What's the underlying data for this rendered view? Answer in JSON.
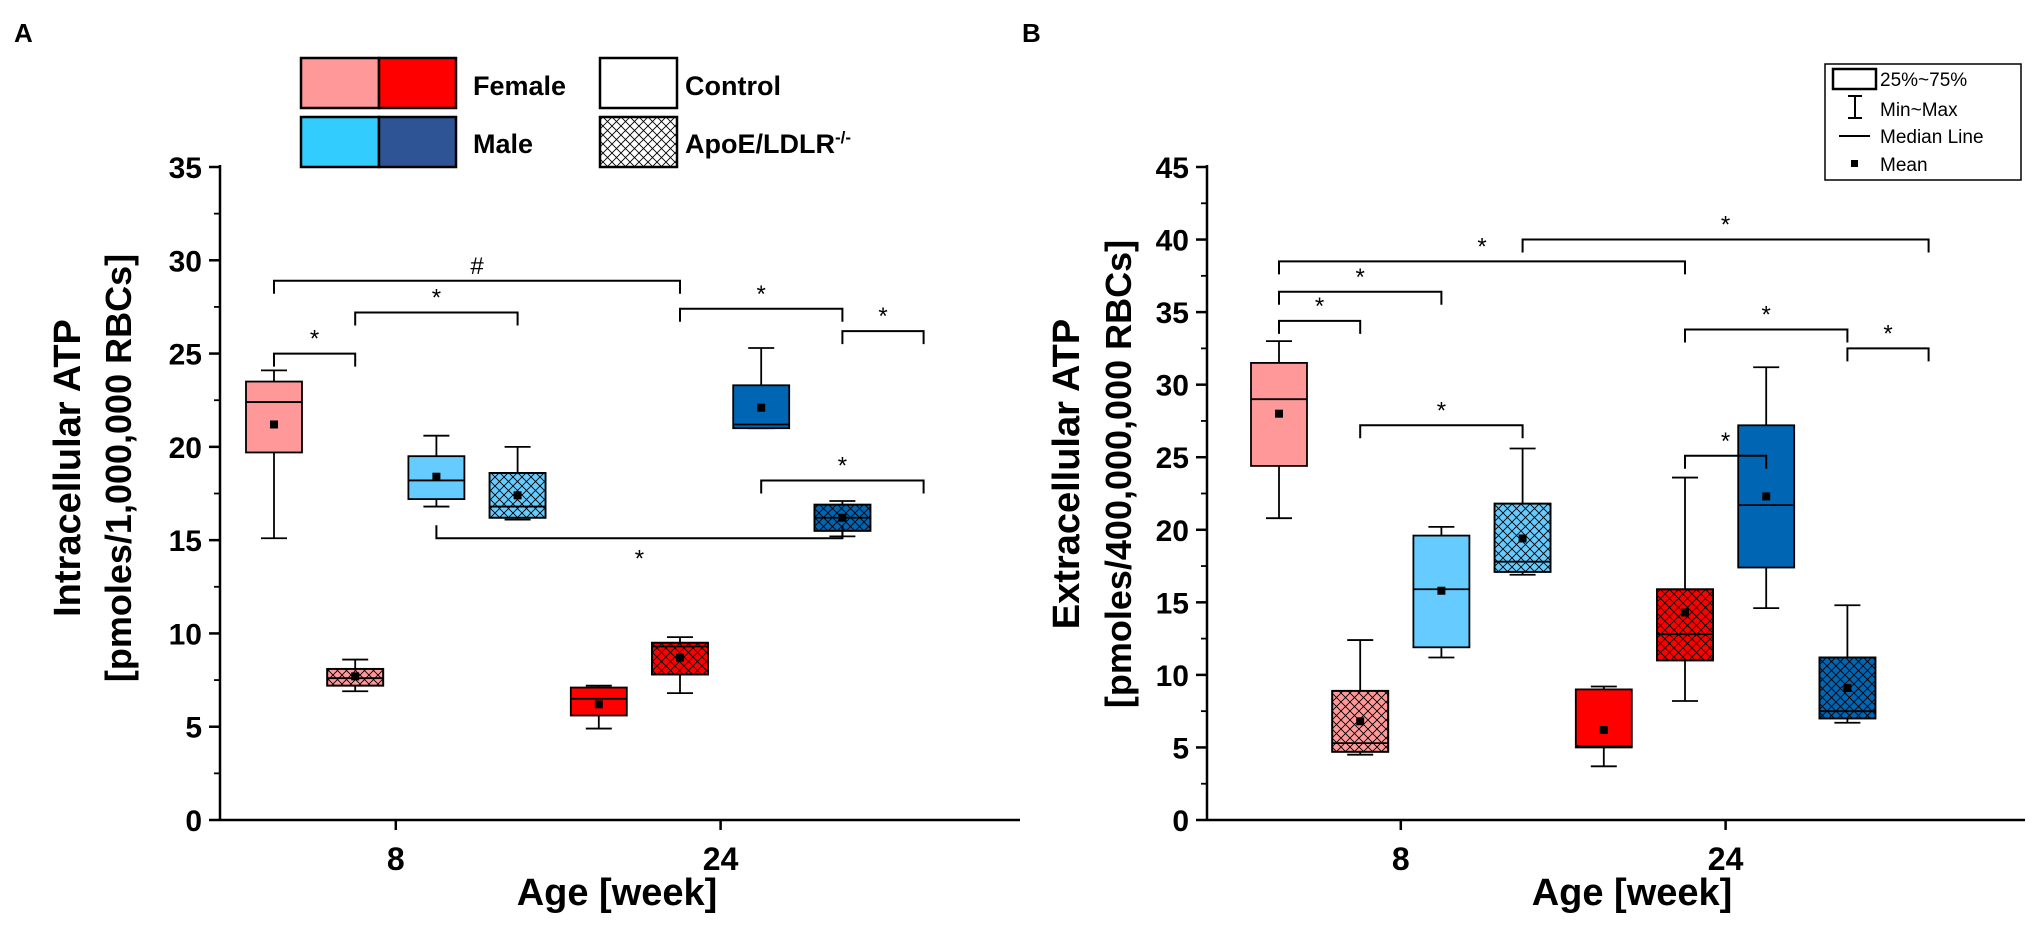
{
  "colors": {
    "female_control": "#ff9999",
    "female_apoe": "#ff0000",
    "male_control": "#66ccff",
    "male_apoe": "#0066b3",
    "legend_male_apoe": "#2e5496",
    "legend_male_control": "#33ccff"
  },
  "legend_groups": {
    "female": "Female",
    "male": "Male",
    "control": "Control",
    "apoe_main": "ApoE/LDLR",
    "apoe_sup": "-/-"
  },
  "box_legend": {
    "box": "25%~75%",
    "whisker": "Min~Max",
    "median": "Median Line",
    "mean": "Mean"
  },
  "chart_data": [
    {
      "panel": "A",
      "type": "box",
      "ylabel_line1": "Intracellular ATP",
      "ylabel_line2": "[pmoles/1,000,000 RBCs]",
      "xlabel": "Age [week]",
      "categories": [
        "8",
        "24"
      ],
      "ylim": [
        0,
        35
      ],
      "yticks": [
        0,
        5,
        10,
        15,
        20,
        25,
        30,
        35
      ],
      "ytick_labels": [
        "0",
        "5",
        "10",
        "15",
        "20",
        "25",
        "30",
        "35"
      ],
      "boxes": [
        {
          "group": "8",
          "series": "Female Control",
          "color": "female_control",
          "hatch": false,
          "slot": 1,
          "min": 15.1,
          "q1": 19.7,
          "median": 22.4,
          "q3": 23.5,
          "max": 24.1,
          "mean": 21.2
        },
        {
          "group": "8",
          "series": "Female ApoE/LDLR-/-",
          "color": "female_control",
          "hatch": true,
          "slot": 2,
          "min": 6.9,
          "q1": 7.2,
          "median": 7.6,
          "q3": 8.1,
          "max": 8.6,
          "mean": 7.7
        },
        {
          "group": "8",
          "series": "Male Control",
          "color": "male_control",
          "hatch": false,
          "slot": 3,
          "min": 16.8,
          "q1": 17.2,
          "median": 18.2,
          "q3": 19.5,
          "max": 20.6,
          "mean": 18.4
        },
        {
          "group": "8",
          "series": "Male ApoE/LDLR-/-",
          "color": "male_control",
          "hatch": true,
          "slot": 4,
          "min": 16.1,
          "q1": 16.2,
          "median": 16.8,
          "q3": 18.6,
          "max": 20.0,
          "mean": 17.4
        },
        {
          "group": "24",
          "series": "Female Control",
          "color": "female_apoe",
          "hatch": false,
          "slot": 5,
          "min": 4.9,
          "q1": 5.6,
          "median": 6.5,
          "q3": 7.1,
          "max": 7.2,
          "mean": 6.2
        },
        {
          "group": "24",
          "series": "Female ApoE/LDLR-/-",
          "color": "female_apoe",
          "hatch": true,
          "slot": 6,
          "min": 6.8,
          "q1": 7.8,
          "median": 9.3,
          "q3": 9.5,
          "max": 9.8,
          "mean": 8.7
        },
        {
          "group": "24",
          "series": "Male Control",
          "color": "male_apoe",
          "hatch": false,
          "slot": 7,
          "min": 21.0,
          "q1": 21.0,
          "median": 21.2,
          "q3": 23.3,
          "max": 25.3,
          "mean": 22.1
        },
        {
          "group": "24",
          "series": "Male ApoE/LDLR-/-",
          "color": "male_apoe",
          "hatch": true,
          "slot": 8,
          "min": 15.2,
          "q1": 15.5,
          "median": 16.2,
          "q3": 16.9,
          "max": 17.1,
          "mean": 16.2
        }
      ],
      "brackets": [
        {
          "from": 1,
          "to": 2,
          "y": 25.0,
          "label": "*",
          "dir": "down",
          "gap": 0.8
        },
        {
          "from": 2,
          "to": 4,
          "y": 27.2,
          "label": "*",
          "dir": "down",
          "gap": 0.8
        },
        {
          "from": 1,
          "to": 6,
          "y": 28.9,
          "label": "#",
          "dir": "down",
          "gap": 0.8
        },
        {
          "from": 6,
          "to": 8,
          "y": 27.4,
          "label": "*",
          "dir": "down",
          "gap": 0.8
        },
        {
          "from": 8,
          "to": 9,
          "y": 26.2,
          "label": "*",
          "dir": "down",
          "gap": 0.8
        },
        {
          "from": 7,
          "to": 9,
          "y": 18.2,
          "label": "*",
          "dir": "down",
          "gap": 0.8
        },
        {
          "from": 3,
          "to": 8,
          "y": 15.1,
          "label": "*",
          "dir": "up",
          "gap": 0.8
        }
      ]
    },
    {
      "panel": "B",
      "type": "box",
      "ylabel_line1": "Extracellular ATP",
      "ylabel_line2": "[pmoles/400,000,000 RBCs]",
      "xlabel": "Age [week]",
      "categories": [
        "8",
        "24"
      ],
      "ylim": [
        0,
        45
      ],
      "yticks": [
        0,
        5,
        10,
        15,
        20,
        25,
        30,
        35,
        40,
        45
      ],
      "ytick_labels": [
        "0",
        "5",
        "10",
        "15",
        "20",
        "25",
        "30",
        "35",
        "40",
        "45"
      ],
      "boxes": [
        {
          "group": "8",
          "series": "Female Control",
          "color": "female_control",
          "hatch": false,
          "slot": 1,
          "min": 20.8,
          "q1": 24.4,
          "median": 29.0,
          "q3": 31.5,
          "max": 33.0,
          "mean": 28.0
        },
        {
          "group": "8",
          "series": "Female ApoE/LDLR-/-",
          "color": "female_control",
          "hatch": true,
          "slot": 2,
          "min": 4.5,
          "q1": 4.7,
          "median": 5.3,
          "q3": 8.9,
          "max": 12.4,
          "mean": 6.8
        },
        {
          "group": "8",
          "series": "Male Control",
          "color": "male_control",
          "hatch": false,
          "slot": 3,
          "min": 11.2,
          "q1": 11.9,
          "median": 15.9,
          "q3": 19.6,
          "max": 20.2,
          "mean": 15.8
        },
        {
          "group": "8",
          "series": "Male ApoE/LDLR-/-",
          "color": "male_control",
          "hatch": true,
          "slot": 4,
          "min": 16.9,
          "q1": 17.1,
          "median": 17.8,
          "q3": 21.8,
          "max": 25.6,
          "mean": 19.4
        },
        {
          "group": "24",
          "series": "Female Control",
          "color": "female_apoe",
          "hatch": false,
          "slot": 5,
          "min": 3.7,
          "q1": 5.0,
          "median": 5.1,
          "q3": 9.0,
          "max": 9.2,
          "mean": 6.2
        },
        {
          "group": "24",
          "series": "Female ApoE/LDLR-/-",
          "color": "female_apoe",
          "hatch": true,
          "slot": 6,
          "min": 8.2,
          "q1": 11.0,
          "median": 12.8,
          "q3": 15.9,
          "max": 23.6,
          "mean": 14.3
        },
        {
          "group": "24",
          "series": "Male Control",
          "color": "male_apoe",
          "hatch": false,
          "slot": 7,
          "min": 14.6,
          "q1": 17.4,
          "median": 21.7,
          "q3": 27.2,
          "max": 31.2,
          "mean": 22.3
        },
        {
          "group": "24",
          "series": "Male ApoE/LDLR-/-",
          "color": "male_apoe",
          "hatch": true,
          "slot": 8,
          "min": 6.7,
          "q1": 7.0,
          "median": 7.5,
          "q3": 11.2,
          "max": 14.8,
          "mean": 9.1
        }
      ],
      "brackets": [
        {
          "from": 1,
          "to": 2,
          "y": 34.4,
          "label": "*",
          "dir": "down",
          "gap": 1.0
        },
        {
          "from": 1,
          "to": 3,
          "y": 36.4,
          "label": "*",
          "dir": "down",
          "gap": 1.0
        },
        {
          "from": 1,
          "to": 6,
          "y": 38.5,
          "label": "*",
          "dir": "down",
          "gap": 1.0
        },
        {
          "from": 4,
          "to": 9,
          "y": 40.0,
          "label": "*",
          "dir": "down",
          "gap": 1.0
        },
        {
          "from": 2,
          "to": 4,
          "y": 27.2,
          "label": "*",
          "dir": "down",
          "gap": 1.0
        },
        {
          "from": 6,
          "to": 7,
          "y": 25.1,
          "label": "*",
          "dir": "down",
          "gap": 1.0
        },
        {
          "from": 6,
          "to": 8,
          "y": 33.8,
          "label": "*",
          "dir": "down",
          "gap": 1.0
        },
        {
          "from": 8,
          "to": 9,
          "y": 32.5,
          "label": "*",
          "dir": "down",
          "gap": 1.0
        }
      ]
    }
  ]
}
